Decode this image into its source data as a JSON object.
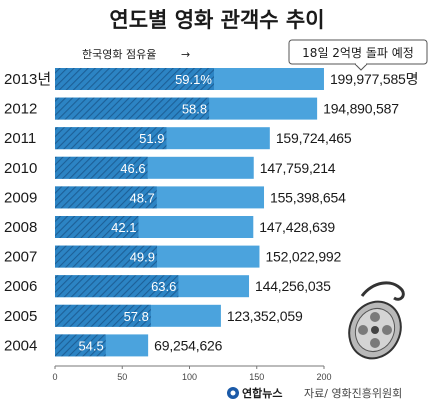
{
  "chart_data": {
    "type": "bar",
    "orientation": "horizontal",
    "title": "연도별 영화 관객수 추이",
    "legend_label": "한국영화 점유율",
    "legend_arrow": "→",
    "callout": "18일 2억명 돌파 예정",
    "categories": [
      "2013년",
      "2012",
      "2011",
      "2010",
      "2009",
      "2008",
      "2007",
      "2006",
      "2005",
      "2004"
    ],
    "audience_millions": [
      199.98,
      194.89,
      159.72,
      147.76,
      155.4,
      147.43,
      152.02,
      144.26,
      123.35,
      69.25
    ],
    "audience_labels": [
      "199,977,585명",
      "194,890,587",
      "159,724,465",
      "147,759,214",
      "155,398,654",
      "147,428,639",
      "152,022,992",
      "144,256,035",
      "123,352,059",
      "69,254,626"
    ],
    "korean_share_percent": [
      59.1,
      58.8,
      51.9,
      46.6,
      48.7,
      42.1,
      49.9,
      63.6,
      57.8,
      54.5
    ],
    "korean_share_labels": [
      "59.1",
      "58.8",
      "51.9",
      "46.6",
      "48.7",
      "42.1",
      "49.9",
      "63.6",
      "57.8",
      "54.5"
    ],
    "share_percent_sign": "%",
    "xticks": [
      "0",
      "50",
      "100",
      "150",
      "200"
    ],
    "xlim": [
      0,
      200
    ],
    "colors": {
      "bar": "#4ba3dd",
      "bar_hatched": "#2c84c4",
      "stripe": "#1d5f96",
      "text": "#1a1a1a"
    }
  },
  "footer": {
    "brand": "연합뉴스",
    "source": "자료/ 영화진흥위원회"
  }
}
